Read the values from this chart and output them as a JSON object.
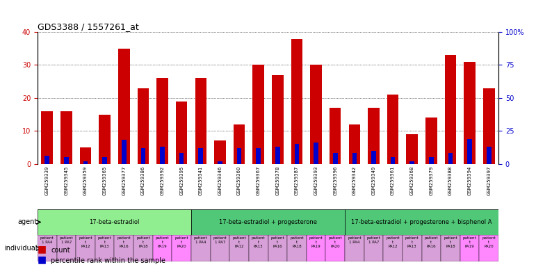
{
  "title": "GDS3388 / 1557261_at",
  "gsm_labels": [
    "GSM259339",
    "GSM259345",
    "GSM259359",
    "GSM259365",
    "GSM259377",
    "GSM259386",
    "GSM259392",
    "GSM259395",
    "GSM259341",
    "GSM259346",
    "GSM259360",
    "GSM259367",
    "GSM259378",
    "GSM259387",
    "GSM259393",
    "GSM259396",
    "GSM259342",
    "GSM259349",
    "GSM259361",
    "GSM259368",
    "GSM259379",
    "GSM259388",
    "GSM259394",
    "GSM259397"
  ],
  "count_values": [
    16,
    16,
    5,
    15,
    35,
    23,
    26,
    19,
    26,
    7,
    12,
    30,
    27,
    38,
    30,
    17,
    12,
    17,
    21,
    9,
    14,
    33,
    31,
    23
  ],
  "percentile_values": [
    6,
    5,
    2,
    5,
    18,
    12,
    13,
    8,
    12,
    2,
    12,
    12,
    13,
    15,
    16,
    8,
    8,
    10,
    5,
    2,
    5,
    8,
    19,
    13
  ],
  "agent_groups": [
    {
      "label": "17-beta-estradiol",
      "start": 0,
      "end": 8,
      "color": "#90EE90"
    },
    {
      "label": "17-beta-estradiol + progesterone",
      "start": 8,
      "end": 16,
      "color": "#50C850"
    },
    {
      "label": "17-beta-estradiol + progesterone + bisphenol A",
      "start": 16,
      "end": 24,
      "color": "#50C850"
    }
  ],
  "individual_labels": [
    "patient\n1 PA4",
    "patient\n1 PA7",
    "patient\nt\nPA12",
    "patient\nt\nPA13",
    "patient\nt\nPA16",
    "patient\nt\nPA18",
    "patient\nt\nPA19",
    "patient\nt\nPA20",
    "patient\n1 PA4",
    "patient\n1 PA7",
    "patient\nt\nPA12",
    "patient\nt\nPA13",
    "patient\nt\nPA16",
    "patient\nt\nPA18",
    "patient\nt\nPA19",
    "patient\nt\nPA20",
    "patient\n1 PA4",
    "patient\n1 PA7",
    "patient\nt\nPA12",
    "patient\nt\nPA13",
    "patient\nt\nPA16",
    "patient\nt\nPA18",
    "patient\nt\nPA19",
    "patient\nt\nPA20"
  ],
  "individual_colors": [
    "#E0A0E0",
    "#E0A0E0",
    "#E0A0E0",
    "#E0A0E0",
    "#E0A0E0",
    "#E0A0E0",
    "#FF80FF",
    "#FF80FF",
    "#E0A0E0",
    "#E0A0E0",
    "#E0A0E0",
    "#E0A0E0",
    "#E0A0E0",
    "#E0A0E0",
    "#FF80FF",
    "#FF80FF",
    "#E0A0E0",
    "#E0A0E0",
    "#E0A0E0",
    "#E0A0E0",
    "#E0A0E0",
    "#E0A0E0",
    "#FF80FF",
    "#FF80FF"
  ],
  "ylim_left": [
    0,
    40
  ],
  "ylim_right": [
    0,
    100
  ],
  "yticks_left": [
    0,
    10,
    20,
    30,
    40
  ],
  "yticks_right": [
    0,
    25,
    50,
    75,
    100
  ],
  "bar_color": "#CC0000",
  "percentile_color": "#0000CC",
  "bg_color": "#FFFFFF",
  "tick_label_color_left": "#CC0000",
  "tick_label_color_right": "#0000CC",
  "legend_count_color": "#CC0000",
  "legend_percentile_color": "#0000CC"
}
